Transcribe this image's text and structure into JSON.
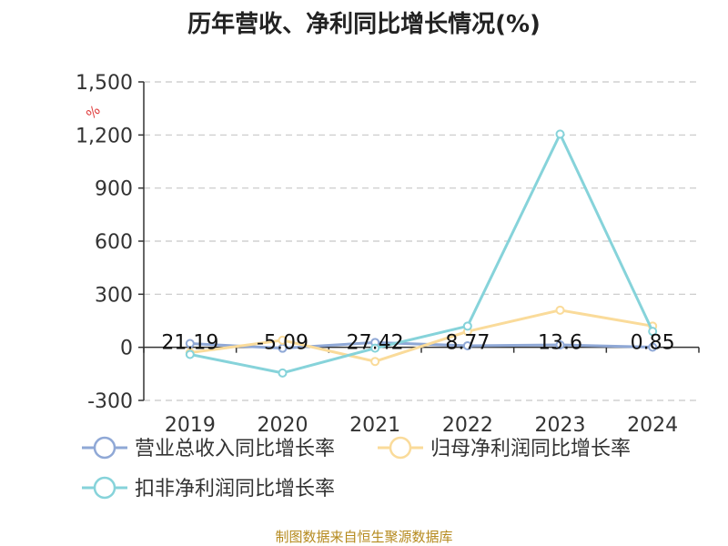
{
  "title": "历年营收、净利同比增长情况(%)",
  "unit_label": "%",
  "source_text": "制图数据来自恒生聚源数据库",
  "chart_data": {
    "type": "line",
    "categories": [
      "2019",
      "2020",
      "2021",
      "2022",
      "2023",
      "2024"
    ],
    "ylim": [
      -300,
      1500
    ],
    "yticks": [
      -300,
      0,
      300,
      600,
      900,
      1200,
      1500
    ],
    "ytick_labels": [
      "-300",
      "0",
      "300",
      "600",
      "900",
      "1,200",
      "1,500"
    ],
    "grid": true,
    "legend_position": "bottom",
    "series": [
      {
        "name": "营业总收入同比增长率",
        "color": "#8fa8d6",
        "values": [
          21.19,
          -5.09,
          27.42,
          8.77,
          13.6,
          0.85
        ],
        "data_labels": [
          "21.19",
          "-5.09",
          "27.42",
          "8.77",
          "13.6",
          "0.85"
        ]
      },
      {
        "name": "归母净利润同比增长率",
        "color": "#fadb9a",
        "values": [
          -30,
          40,
          -80,
          90,
          210,
          120
        ]
      },
      {
        "name": "扣非净利润同比增长率",
        "color": "#86d3da",
        "values": [
          -40,
          -145,
          -5,
          120,
          1205,
          90
        ]
      }
    ]
  }
}
